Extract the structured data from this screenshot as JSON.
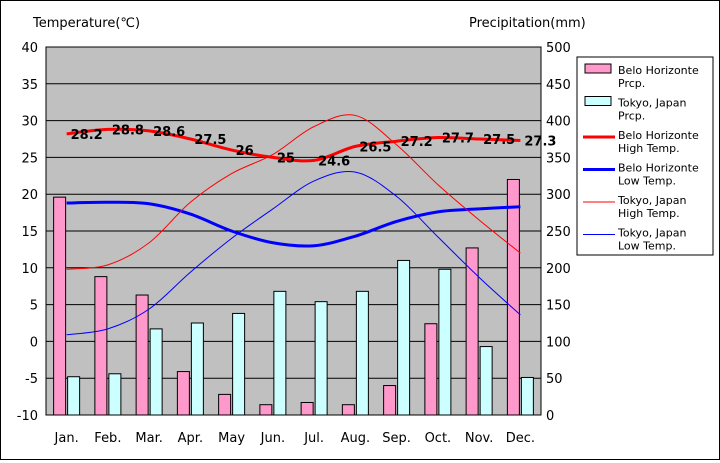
{
  "chart_data": {
    "type": "bar+line",
    "categories": [
      "Jan.",
      "Feb.",
      "Mar.",
      "Apr.",
      "May",
      "Jun.",
      "Jul.",
      "Aug.",
      "Sep.",
      "Oct.",
      "Nov.",
      "Dec."
    ],
    "ylabel_left": "Temperature(℃)",
    "ylabel_right": "Precipitation(mm)",
    "ylim_left": [
      -10,
      40
    ],
    "yticks_left": [
      -10,
      -5,
      0,
      5,
      10,
      15,
      20,
      25,
      30,
      35,
      40
    ],
    "ylim_right": [
      0,
      500
    ],
    "yticks_right": [
      0,
      50,
      100,
      150,
      200,
      250,
      300,
      350,
      400,
      450,
      500
    ],
    "grid": true,
    "legend_position": "right",
    "bars": [
      {
        "name": "Belo Horizonte Prcp.",
        "color": "#ff99cc",
        "values": [
          296,
          188,
          163,
          59,
          28,
          14,
          17,
          14,
          40,
          124,
          227,
          320
        ]
      },
      {
        "name": "Tokyo, Japan Prcp.",
        "color": "#ccffff",
        "values": [
          52,
          56,
          117,
          125,
          138,
          168,
          154,
          168,
          210,
          198,
          93,
          51
        ]
      }
    ],
    "lines": [
      {
        "name": "Belo Horizonte High Temp.",
        "color": "#ff0000",
        "width": "thick",
        "values": [
          28.2,
          28.8,
          28.6,
          27.5,
          26,
          25,
          24.6,
          26.5,
          27.2,
          27.7,
          27.5,
          27.3
        ],
        "labels": [
          "28.2",
          "28.8",
          "28.6",
          "27.5",
          "26",
          "25",
          "24.6",
          "26.5",
          "27.2",
          "27.7",
          "27.5",
          "27.3"
        ]
      },
      {
        "name": "Belo Horizonte Low Temp.",
        "color": "#0000ff",
        "width": "thick",
        "values": [
          18.8,
          18.9,
          18.7,
          17.3,
          15.0,
          13.4,
          13.0,
          14.3,
          16.3,
          17.6,
          18.0,
          18.3
        ]
      },
      {
        "name": "Tokyo, Japan High Temp.",
        "color": "#ff0000",
        "width": "thin",
        "values": [
          9.8,
          10.4,
          13.4,
          18.9,
          22.8,
          25.4,
          29.2,
          30.7,
          26.7,
          21.3,
          16.5,
          12.0
        ]
      },
      {
        "name": "Tokyo, Japan Low Temp.",
        "color": "#0000ff",
        "width": "thin",
        "values": [
          0.9,
          1.7,
          4.4,
          9.4,
          14.0,
          18.0,
          21.8,
          23.0,
          19.7,
          14.2,
          8.7,
          3.6
        ]
      }
    ],
    "legend": [
      {
        "label_line1": "Belo Horizonte",
        "label_line2": "Prcp."
      },
      {
        "label_line1": "Tokyo, Japan",
        "label_line2": "Prcp."
      },
      {
        "label_line1": "Belo Horizonte",
        "label_line2": "High Temp."
      },
      {
        "label_line1": "Belo Horizonte",
        "label_line2": "Low Temp."
      },
      {
        "label_line1": "Tokyo, Japan",
        "label_line2": "High Temp."
      },
      {
        "label_line1": "Tokyo, Japan",
        "label_line2": "Low Temp."
      }
    ]
  }
}
